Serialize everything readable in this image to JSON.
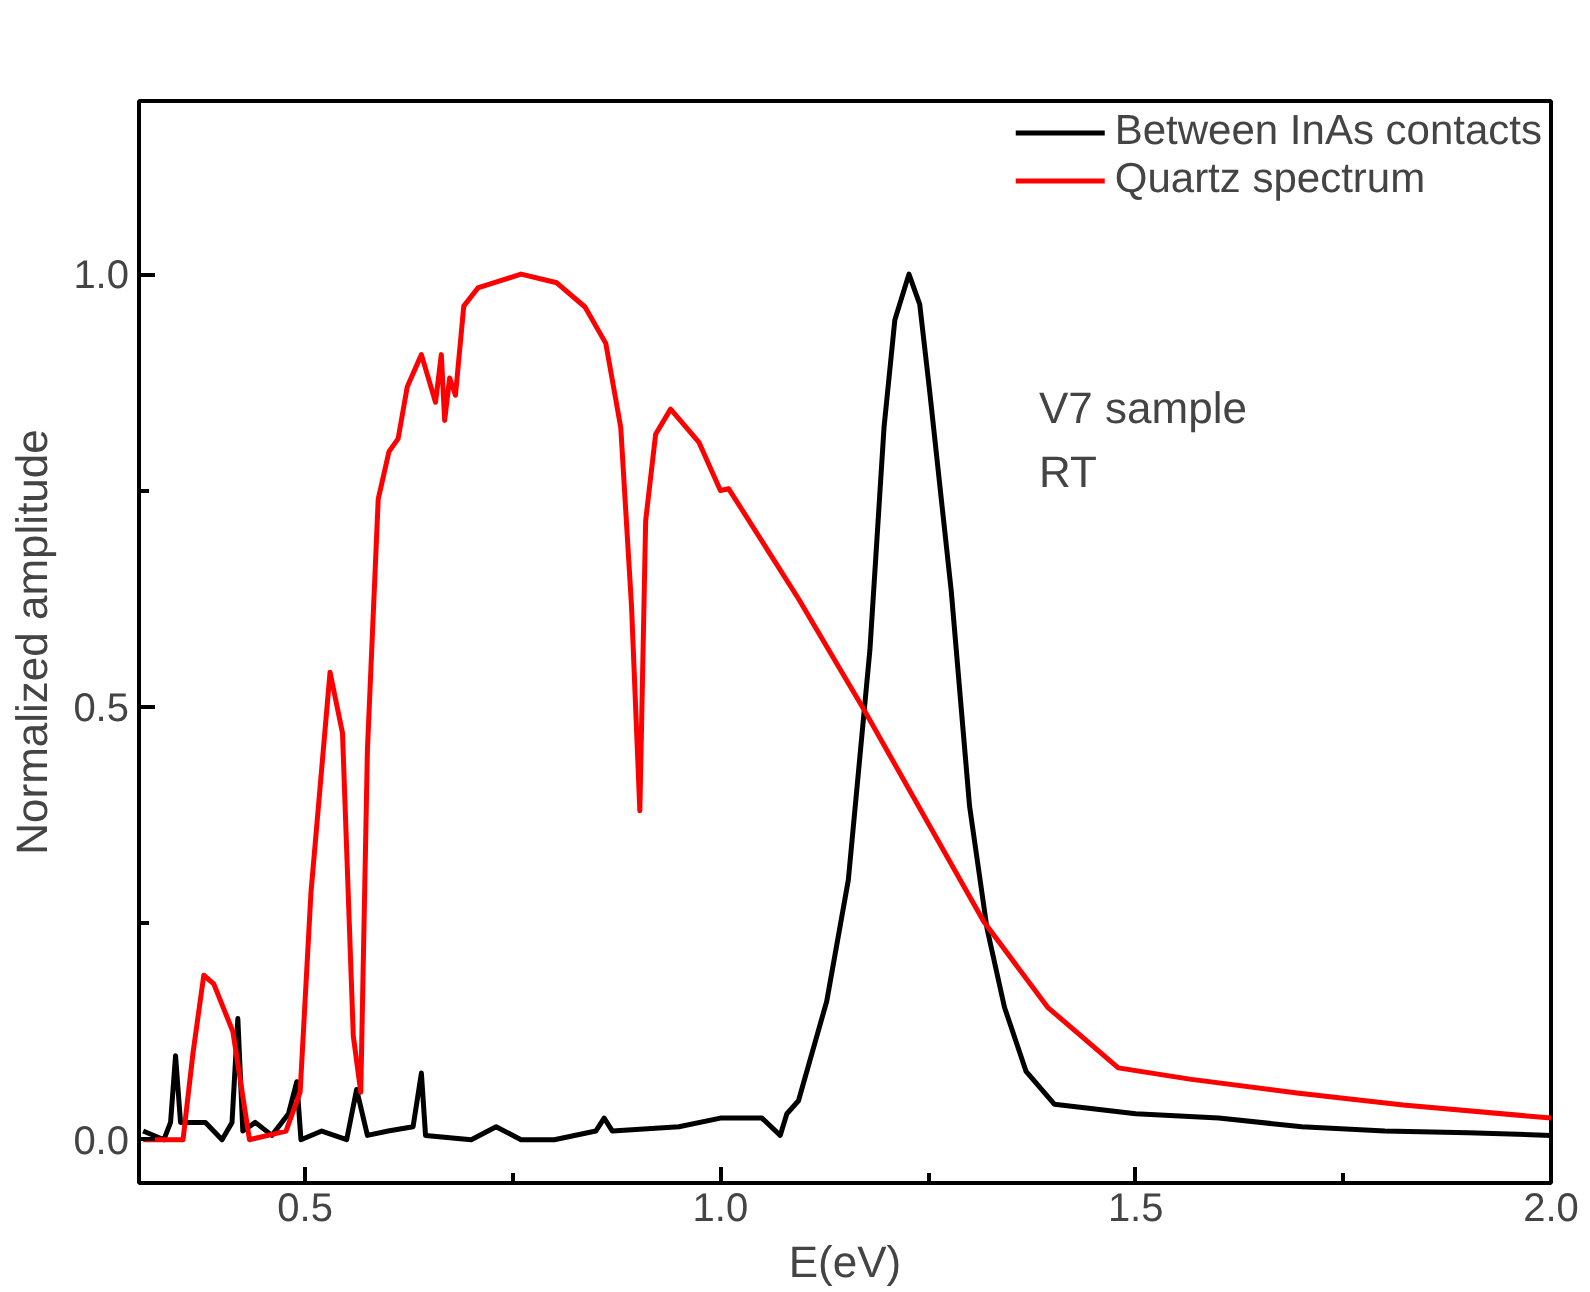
{
  "chart_data": {
    "type": "line",
    "xlabel": "E(eV)",
    "ylabel": "Normalized amplitude",
    "annotations": [
      "V7 sample",
      "RT"
    ],
    "xlim": [
      0.3,
      2.0
    ],
    "ylim": [
      -0.05,
      1.2
    ],
    "xticks": [
      {
        "value": 0.5,
        "label": "0.5"
      },
      {
        "value": 0.75,
        "label": null
      },
      {
        "value": 1,
        "label": "1.0"
      },
      {
        "value": 1.25,
        "label": null
      },
      {
        "value": 1.5,
        "label": "1.5"
      },
      {
        "value": 1.75,
        "label": null
      },
      {
        "value": 2,
        "label": "2.0"
      }
    ],
    "yticks": [
      {
        "value": 0,
        "label": "0.0"
      },
      {
        "value": 0.25,
        "label": null
      },
      {
        "value": 0.5,
        "label": "0.5"
      },
      {
        "value": 0.75,
        "label": null
      },
      {
        "value": 1,
        "label": "1.0"
      }
    ],
    "grid": false,
    "legend": "top right",
    "marker": "none",
    "line_style": "solid",
    "series": [
      {
        "name": "Between InAs contacts",
        "color": "#000000",
        "x": [
          0.305,
          0.33,
          0.338,
          0.344,
          0.35,
          0.38,
          0.4,
          0.412,
          0.419,
          0.425,
          0.44,
          0.46,
          0.48,
          0.49,
          0.495,
          0.52,
          0.55,
          0.562,
          0.575,
          0.6,
          0.63,
          0.64,
          0.645,
          0.7,
          0.73,
          0.76,
          0.8,
          0.85,
          0.86,
          0.87,
          0.95,
          1.0,
          1.05,
          1.072,
          1.08,
          1.094,
          1.128,
          1.154,
          1.18,
          1.197,
          1.21,
          1.227,
          1.24,
          1.252,
          1.278,
          1.3,
          1.321,
          1.342,
          1.368,
          1.402,
          1.5,
          1.6,
          1.7,
          1.8,
          1.9,
          2.0
        ],
        "values": [
          0.01,
          0.0,
          0.02,
          0.097,
          0.02,
          0.02,
          0.0,
          0.02,
          0.14,
          0.01,
          0.02,
          0.005,
          0.03,
          0.067,
          0.0,
          0.01,
          0.0,
          0.058,
          0.005,
          0.01,
          0.015,
          0.077,
          0.005,
          0.0,
          0.015,
          0.0,
          0.0,
          0.01,
          0.025,
          0.01,
          0.015,
          0.025,
          0.025,
          0.005,
          0.03,
          0.045,
          0.16,
          0.3,
          0.566,
          0.823,
          0.947,
          1.0,
          0.965,
          0.864,
          0.633,
          0.385,
          0.244,
          0.153,
          0.079,
          0.041,
          0.03,
          0.025,
          0.015,
          0.01,
          0.008,
          0.005
        ]
      },
      {
        "name": "Quartz spectrum",
        "color": "#ff0000",
        "x": [
          0.305,
          0.353,
          0.365,
          0.378,
          0.39,
          0.413,
          0.433,
          0.477,
          0.494,
          0.507,
          0.53,
          0.545,
          0.558,
          0.567,
          0.575,
          0.588,
          0.601,
          0.612,
          0.623,
          0.64,
          0.657,
          0.664,
          0.668,
          0.674,
          0.681,
          0.691,
          0.708,
          0.76,
          0.803,
          0.837,
          0.862,
          0.88,
          0.893,
          0.903,
          0.91,
          0.922,
          0.94,
          0.974,
          1.0,
          1.01,
          1.094,
          1.145,
          1.171,
          1.317,
          1.394,
          1.479,
          1.565,
          1.694,
          1.822,
          2.0
        ],
        "values": [
          0.0,
          0.0,
          0.1,
          0.19,
          0.18,
          0.125,
          0.0,
          0.01,
          0.055,
          0.285,
          0.54,
          0.47,
          0.12,
          0.055,
          0.45,
          0.74,
          0.795,
          0.81,
          0.87,
          0.907,
          0.852,
          0.907,
          0.831,
          0.88,
          0.86,
          0.963,
          0.984,
          1.0,
          0.99,
          0.962,
          0.92,
          0.823,
          0.616,
          0.38,
          0.715,
          0.815,
          0.844,
          0.806,
          0.75,
          0.752,
          0.625,
          0.542,
          0.5,
          0.252,
          0.153,
          0.083,
          0.07,
          0.054,
          0.04,
          0.025
        ]
      }
    ]
  }
}
